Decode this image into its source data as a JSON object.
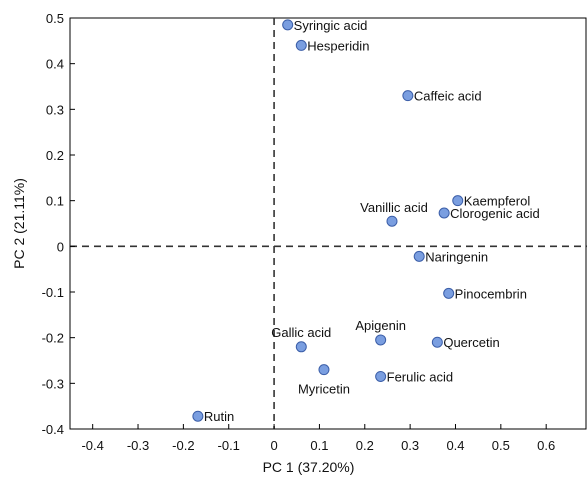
{
  "chart_data": {
    "type": "scatter",
    "xlabel": "PC 1 (37.20%)",
    "ylabel": "PC 2 (21.11%)",
    "xlim": [
      -0.45,
      0.69
    ],
    "ylim": [
      -0.4,
      0.5
    ],
    "xticks": [
      "-0.4",
      "-0.3",
      "-0.2",
      "-0.1",
      "0",
      "0.1",
      "0.2",
      "0.3",
      "0.4",
      "0.5",
      "0.6"
    ],
    "yticks": [
      "-0.4",
      "-0.3",
      "-0.2",
      "-0.1",
      "0",
      "0.1",
      "0.2",
      "0.3",
      "0.4",
      "0.5"
    ],
    "reference_lines": {
      "x": 0,
      "y": 0,
      "style": "dashed"
    },
    "marker_color": "#7a9ee0",
    "marker_edge_color": "#3b5ea8",
    "grid": false,
    "points": [
      {
        "label": "Syringic acid",
        "x": 0.03,
        "y": 0.485,
        "label_pos": "right"
      },
      {
        "label": "Hesperidin",
        "x": 0.06,
        "y": 0.44,
        "label_pos": "right"
      },
      {
        "label": "Caffeic acid",
        "x": 0.295,
        "y": 0.33,
        "label_pos": "right"
      },
      {
        "label": "Kaempferol",
        "x": 0.405,
        "y": 0.1,
        "label_pos": "right"
      },
      {
        "label": "Clorogenic acid",
        "x": 0.375,
        "y": 0.073,
        "label_pos": "right"
      },
      {
        "label": "Vanillic acid",
        "x": 0.26,
        "y": 0.055,
        "label_pos": "above-left"
      },
      {
        "label": "Naringenin",
        "x": 0.32,
        "y": -0.022,
        "label_pos": "right"
      },
      {
        "label": "Pinocembrin",
        "x": 0.385,
        "y": -0.103,
        "label_pos": "right"
      },
      {
        "label": "Apigenin",
        "x": 0.235,
        "y": -0.205,
        "label_pos": "above"
      },
      {
        "label": "Quercetin",
        "x": 0.36,
        "y": -0.21,
        "label_pos": "right"
      },
      {
        "label": "Gallic acid",
        "x": 0.06,
        "y": -0.22,
        "label_pos": "above"
      },
      {
        "label": "Myricetin",
        "x": 0.11,
        "y": -0.27,
        "label_pos": "below"
      },
      {
        "label": "Ferulic acid",
        "x": 0.235,
        "y": -0.285,
        "label_pos": "right"
      },
      {
        "label": "Rutin",
        "x": -0.168,
        "y": -0.372,
        "label_pos": "right"
      }
    ]
  }
}
